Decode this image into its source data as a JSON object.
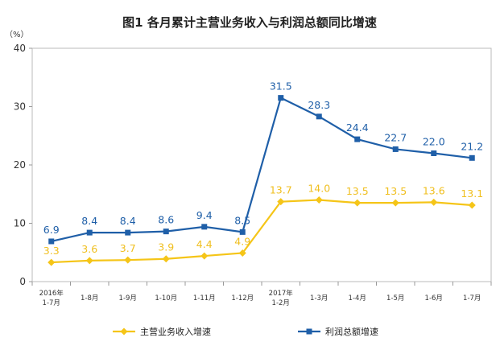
{
  "chart_data": {
    "type": "line",
    "title": "图1  各月累计主营业务收入与利润总额同比增速",
    "unit_label": "（%）",
    "categories": [
      [
        "2016年",
        "1-7月"
      ],
      [
        "1-8月"
      ],
      [
        "1-9月"
      ],
      [
        "1-10月"
      ],
      [
        "1-11月"
      ],
      [
        "1-12月"
      ],
      [
        "2017年",
        "1-2月"
      ],
      [
        "1-3月"
      ],
      [
        "1-4月"
      ],
      [
        "1-5月"
      ],
      [
        "1-6月"
      ],
      [
        "1-7月"
      ]
    ],
    "ylim": [
      0,
      40
    ],
    "yticks": [
      0,
      10,
      20,
      30,
      40
    ],
    "grid": false,
    "legend_position": "bottom",
    "series": [
      {
        "name": "主营业务收入增速",
        "color": "#f5c518",
        "marker": "diamond",
        "values": [
          3.3,
          3.6,
          3.7,
          3.9,
          4.4,
          4.9,
          13.7,
          14.0,
          13.5,
          13.5,
          13.6,
          13.1
        ],
        "labels": [
          "3.3",
          "3.6",
          "3.7",
          "3.9",
          "4.4",
          "4.9",
          "13.7",
          "14.0",
          "13.5",
          "13.5",
          "13.6",
          "13.1"
        ]
      },
      {
        "name": "利润总额增速",
        "color": "#1f5fa8",
        "marker": "square",
        "values": [
          6.9,
          8.4,
          8.4,
          8.6,
          9.4,
          8.5,
          31.5,
          28.3,
          24.4,
          22.7,
          22.0,
          21.2
        ],
        "labels": [
          "6.9",
          "8.4",
          "8.4",
          "8.6",
          "9.4",
          "8.5",
          "31.5",
          "28.3",
          "24.4",
          "22.7",
          "22.0",
          "21.2"
        ]
      }
    ]
  }
}
